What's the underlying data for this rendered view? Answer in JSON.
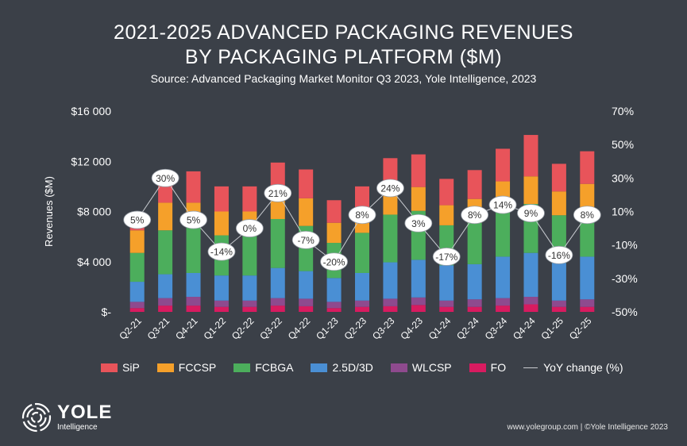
{
  "header": {
    "title_line1": "2021-2025 ADVANCED PACKAGING REVENUES",
    "title_line2": "BY PACKAGING PLATFORM ($M)",
    "subtitle": "Source: Advanced Packaging Market Monitor Q3 2023, Yole Intelligence, 2023"
  },
  "chart_data": {
    "type": "bar",
    "stacked": true,
    "categories": [
      "Q2-21",
      "Q3-21",
      "Q4-21",
      "Q1-22",
      "Q2-22",
      "Q3-22",
      "Q4-22",
      "Q1-23",
      "Q2-23",
      "Q3-23",
      "Q4-23",
      "Q1-24",
      "Q2-24",
      "Q3-24",
      "Q4-24",
      "Q1-25",
      "Q2-25"
    ],
    "series": [
      {
        "name": "FO",
        "color": "#d81b60",
        "values": [
          300,
          500,
          500,
          400,
          400,
          500,
          450,
          300,
          400,
          450,
          550,
          400,
          400,
          500,
          600,
          400,
          400
        ]
      },
      {
        "name": "WLCSP",
        "color": "#8e4a8e",
        "values": [
          500,
          600,
          700,
          500,
          500,
          600,
          600,
          500,
          500,
          600,
          600,
          500,
          600,
          600,
          600,
          500,
          600
        ]
      },
      {
        "name": "2.5D/3D",
        "color": "#4a8fd4",
        "values": [
          1600,
          1900,
          1900,
          2000,
          2000,
          2400,
          2200,
          1900,
          2200,
          2900,
          3000,
          2800,
          2800,
          3300,
          3500,
          3000,
          3400
        ]
      },
      {
        "name": "FCBGA",
        "color": "#4cae5c",
        "values": [
          2300,
          3500,
          3800,
          3200,
          3200,
          3900,
          3600,
          2800,
          3200,
          3800,
          3900,
          3200,
          3300,
          3900,
          3900,
          3800,
          3400
        ]
      },
      {
        "name": "FCCSP",
        "color": "#f5a02a",
        "values": [
          1800,
          2200,
          1800,
          1900,
          1900,
          2100,
          2200,
          1600,
          1900,
          2200,
          1900,
          1600,
          1900,
          2100,
          2200,
          1900,
          2400
        ]
      },
      {
        "name": "SiP",
        "color": "#e8545a",
        "values": [
          600,
          2100,
          2500,
          2000,
          2000,
          2400,
          2300,
          1800,
          1800,
          2300,
          2600,
          2100,
          2300,
          2600,
          3300,
          2200,
          2600
        ]
      }
    ],
    "yoy_change": {
      "name": "YoY change (%)",
      "values": [
        5,
        30,
        5,
        -14,
        0,
        21,
        -7,
        -20,
        8,
        24,
        3,
        -17,
        8,
        14,
        9,
        -16,
        8
      ],
      "labels": [
        "5%",
        "30%",
        "5%",
        "-14%",
        "0%",
        "21%",
        "-7%",
        "-20%",
        "8%",
        "24%",
        "3%",
        "-17%",
        "8%",
        "14%",
        "9%",
        "-16%",
        "8%"
      ]
    },
    "ylabel": "Revenues ($M)",
    "ylim": [
      0,
      16000
    ],
    "y_ticks": [
      0,
      4000,
      8000,
      12000,
      16000
    ],
    "y_tick_labels": [
      "$-",
      "$4 000",
      "$8 000",
      "$12 000",
      "$16 000"
    ],
    "y2lim": [
      -50,
      70
    ],
    "y2_ticks": [
      -50,
      -30,
      -10,
      10,
      30,
      50,
      70
    ],
    "y2_tick_labels": [
      "-50%",
      "-30%",
      "-10%",
      "10%",
      "30%",
      "50%",
      "70%"
    ],
    "grid": false,
    "legend": "bottom"
  },
  "legend": {
    "items": [
      {
        "label": "SiP",
        "color": "#e8545a"
      },
      {
        "label": "FCCSP",
        "color": "#f5a02a"
      },
      {
        "label": "FCBGA",
        "color": "#4cae5c"
      },
      {
        "label": "2.5D/3D",
        "color": "#4a8fd4"
      },
      {
        "label": "WLCSP",
        "color": "#8e4a8e"
      },
      {
        "label": "FO",
        "color": "#d81b60"
      }
    ],
    "line_label": "YoY change (%)"
  },
  "branding": {
    "logo_name": "YOLE",
    "logo_sub": "Intelligence"
  },
  "footer": "www.yolegroup.com | ©Yole Intelligence 2023"
}
